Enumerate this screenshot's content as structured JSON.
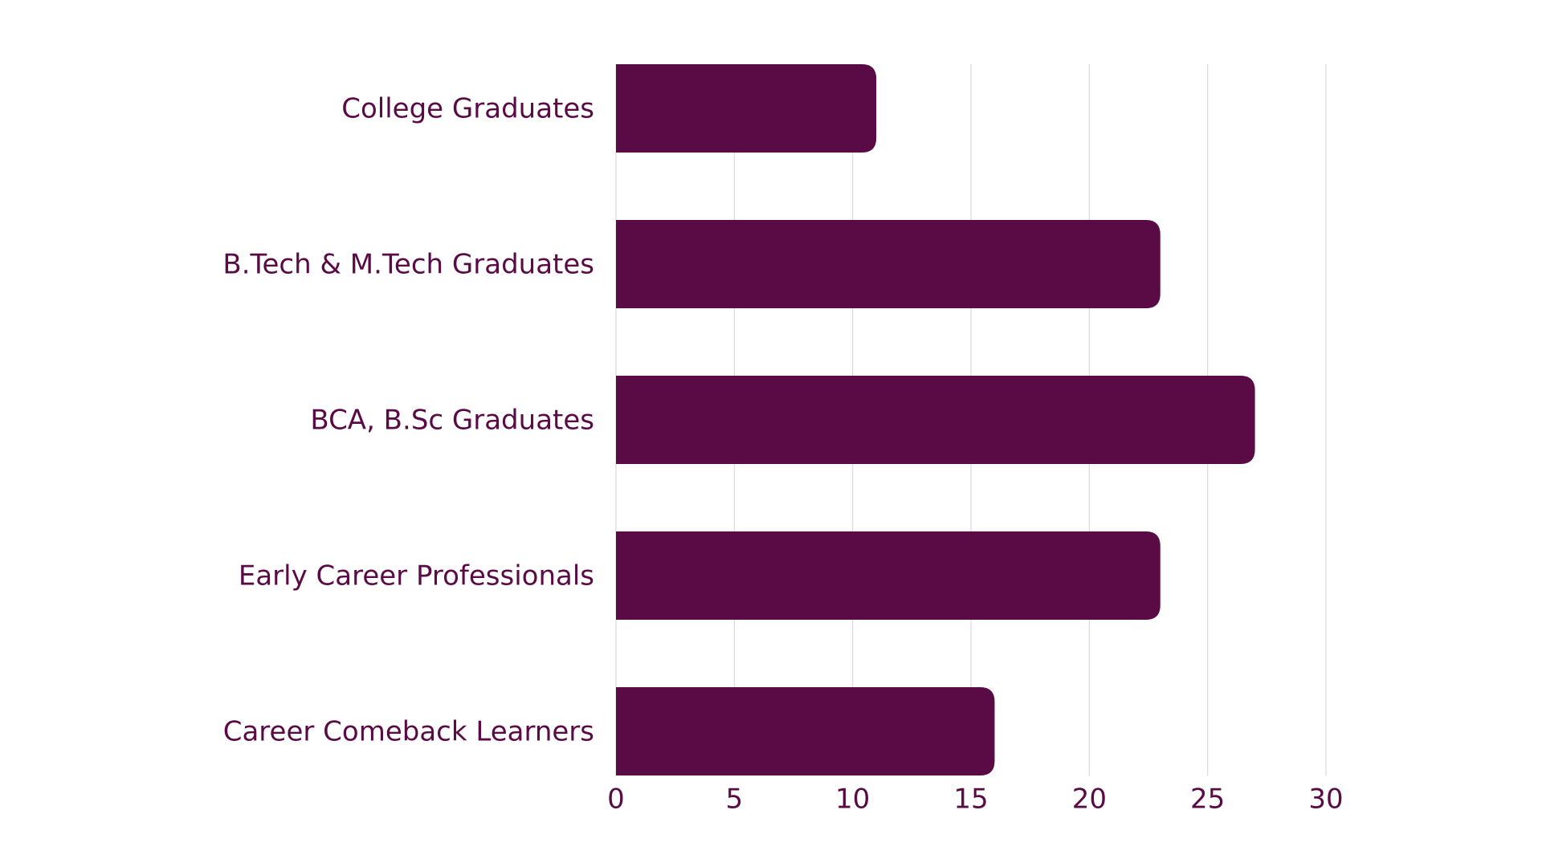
{
  "chart_data": {
    "type": "bar",
    "orientation": "horizontal",
    "categories": [
      "College Graduates",
      "B.Tech & M.Tech Graduates",
      "BCA, B.Sc Graduates",
      "Early Career Professionals",
      "Career Comeback Learners"
    ],
    "values": [
      11,
      23,
      27,
      23,
      16
    ],
    "x_ticks": [
      "0",
      "5",
      "10",
      "15",
      "20",
      "25",
      "30"
    ],
    "xlim": [
      0,
      30
    ],
    "title": "",
    "xlabel": "",
    "ylabel": "",
    "grid": "vertical",
    "legend": "none"
  },
  "colors": {
    "bar": "#5a0b45",
    "text": "#5a0b45",
    "grid": "#d9d9d9",
    "background": "#ffffff"
  }
}
